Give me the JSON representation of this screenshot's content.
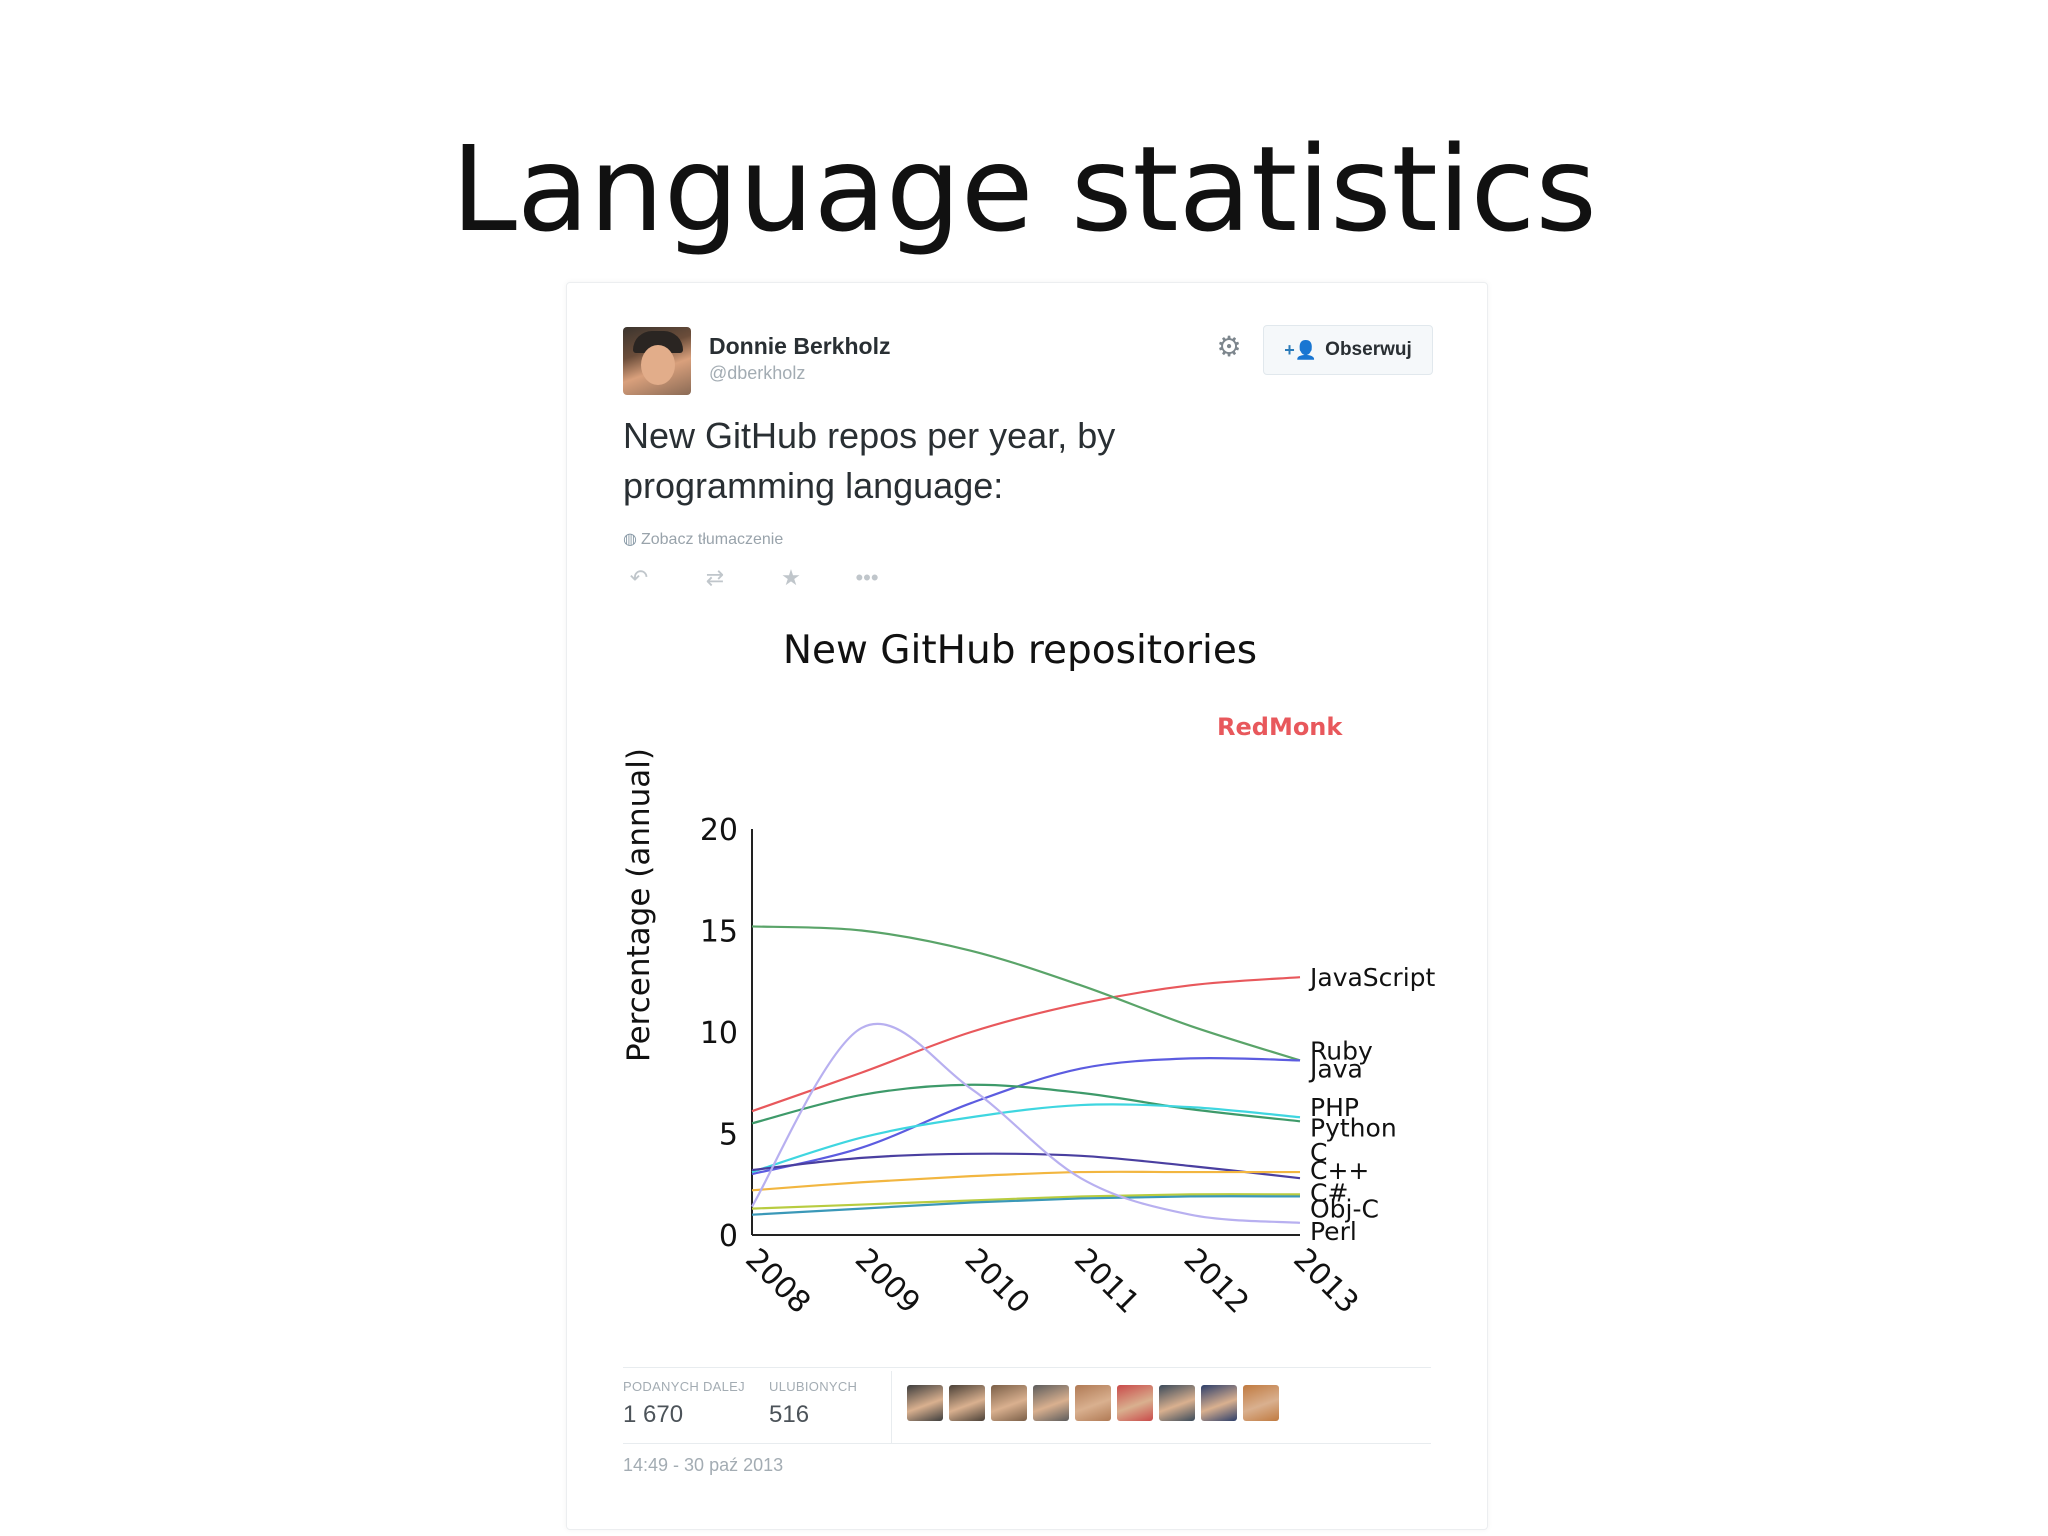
{
  "slide": {
    "title": "Language statistics"
  },
  "tweet": {
    "display_name": "Donnie Berkholz",
    "handle": "@dberkholz",
    "follow_label": "Obserwuj",
    "text_line1": "New GitHub repos per year, by",
    "text_line2": "programming language:",
    "translate_label": "Zobacz tłumaczenie",
    "retweets_label": "PODANYCH DALEJ",
    "retweets_value": "1 670",
    "favorites_label": "ULUBIONYCH",
    "favorites_value": "516",
    "timestamp": "14:49 - 30 paź 2013",
    "icons": {
      "reply": "reply-icon",
      "retweet": "retweet-icon",
      "favorite": "star-icon",
      "more": "more-icon",
      "gear": "gear-icon",
      "follow": "add-person-icon",
      "globe": "globe-icon"
    },
    "favoriter_avatar_colors": [
      "#3d3d3d",
      "#4a4037",
      "#7a5f48",
      "#5c5c5c",
      "#b07a55",
      "#c94a4a",
      "#3a4a5a",
      "#2c3e6a",
      "#c07a40"
    ]
  },
  "chart_data": {
    "type": "line",
    "title": "New GitHub repositories",
    "watermark": "RedMonk",
    "xlabel": "",
    "ylabel": "Percentage (annual)",
    "x": [
      2008,
      2009,
      2010,
      2011,
      2012,
      2013
    ],
    "xlim": [
      2008,
      2013
    ],
    "ylim": [
      0,
      20
    ],
    "yticks": [
      0,
      5,
      10,
      15,
      20
    ],
    "grid": false,
    "legend": "labels at line ends (right)",
    "series": [
      {
        "name": "JavaScript",
        "color": "#e8585c",
        "values": [
          6.1,
          8.0,
          10.0,
          11.4,
          12.3,
          12.7
        ]
      },
      {
        "name": "Ruby",
        "color": "#5aa469",
        "values": [
          15.2,
          15.0,
          14.0,
          12.3,
          10.3,
          8.6
        ]
      },
      {
        "name": "Java",
        "color": "#5c5ce0",
        "values": [
          3.0,
          4.3,
          6.5,
          8.2,
          8.7,
          8.6
        ]
      },
      {
        "name": "PHP",
        "color": "#3e9a6a",
        "values": [
          5.5,
          6.9,
          7.4,
          7.0,
          6.2,
          5.6
        ]
      },
      {
        "name": "Python",
        "color": "#3fd6e0",
        "values": [
          3.1,
          4.8,
          5.8,
          6.4,
          6.3,
          5.8
        ]
      },
      {
        "name": "C",
        "color": "#4a3fa0",
        "values": [
          3.2,
          3.8,
          4.0,
          3.9,
          3.4,
          2.8
        ]
      },
      {
        "name": "C++",
        "color": "#f2b640",
        "values": [
          2.2,
          2.6,
          2.9,
          3.1,
          3.1,
          3.1
        ]
      },
      {
        "name": "C#",
        "color": "#b8cc40",
        "values": [
          1.3,
          1.5,
          1.7,
          1.9,
          2.0,
          2.0
        ]
      },
      {
        "name": "Obj-C",
        "color": "#3a98b8",
        "values": [
          1.0,
          1.3,
          1.6,
          1.8,
          1.9,
          1.9
        ]
      },
      {
        "name": "Perl",
        "color": "#b8b0f0",
        "values": [
          1.4,
          10.2,
          7.2,
          2.8,
          1.0,
          0.6
        ]
      }
    ],
    "end_labels": [
      {
        "text": "JavaScript",
        "y": 12.7
      },
      {
        "text": "Ruby",
        "y": 9.1
      },
      {
        "text": "Java",
        "y": 8.2
      },
      {
        "text": "PHP",
        "y": 6.3
      },
      {
        "text": "Python",
        "y": 5.3
      },
      {
        "text": "C",
        "y": 4.1
      },
      {
        "text": "C++",
        "y": 3.2
      },
      {
        "text": "C#",
        "y": 2.1
      },
      {
        "text": "Obj-C",
        "y": 1.3
      },
      {
        "text": "Perl",
        "y": 0.2
      }
    ]
  }
}
